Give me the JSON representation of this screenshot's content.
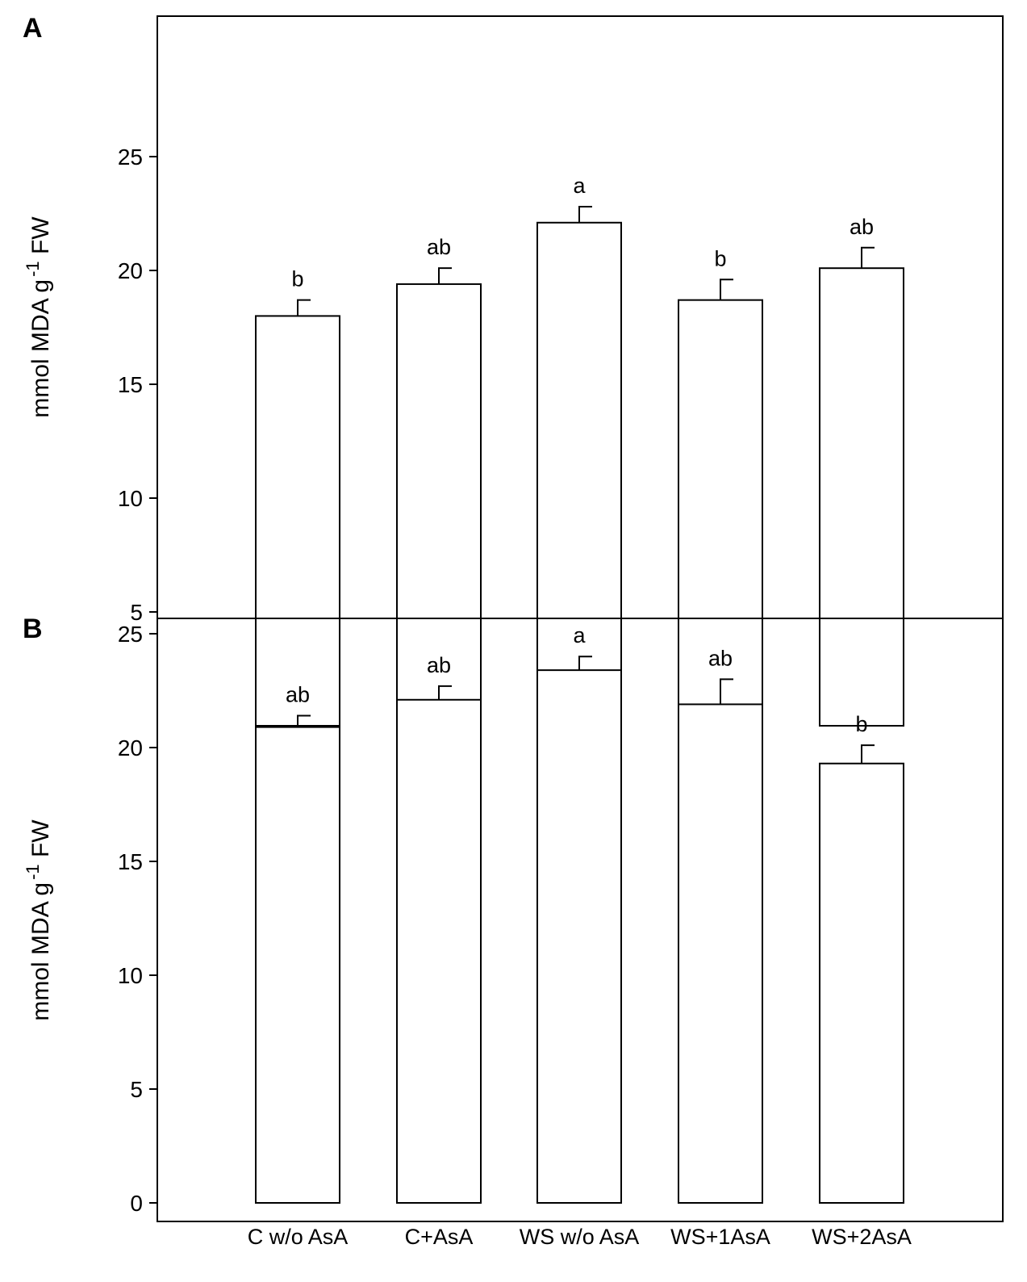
{
  "chart_data": [
    {
      "type": "bar",
      "panel_label": "A",
      "categories": [
        "C w/o AsA",
        "C+AsA",
        "WS w/o AsA",
        "WS+1AsA",
        "WS+2AsA"
      ],
      "values": [
        18.0,
        19.4,
        22.1,
        18.7,
        20.1
      ],
      "errors": [
        0.7,
        0.7,
        0.7,
        0.9,
        0.9
      ],
      "significance": [
        "b",
        "ab",
        "a",
        "b",
        "ab"
      ],
      "ylabel": "mmol MDA g",
      "ylabel_sup": "-1",
      "ylabel_suffix": " FW",
      "ylim": [
        0,
        26
      ],
      "yticks": [
        5,
        10,
        15,
        20,
        25
      ],
      "bar_color": "#ffffff",
      "edge_color": "#000000"
    },
    {
      "type": "bar",
      "panel_label": "B",
      "categories": [
        "C w/o AsA",
        "C+AsA",
        "WS w/o AsA",
        "WS+1AsA",
        "WS+2AsA"
      ],
      "values": [
        20.9,
        22.1,
        23.4,
        21.9,
        19.3
      ],
      "errors": [
        0.5,
        0.6,
        0.6,
        1.1,
        0.8
      ],
      "significance": [
        "ab",
        "ab",
        "a",
        "ab",
        "b"
      ],
      "ylabel": "mmol MDA g",
      "ylabel_sup": "-1",
      "ylabel_suffix": " FW",
      "ylim": [
        0,
        26
      ],
      "yticks": [
        0,
        5,
        10,
        15,
        20,
        25
      ],
      "bar_color": "#ffffff",
      "edge_color": "#000000"
    }
  ]
}
